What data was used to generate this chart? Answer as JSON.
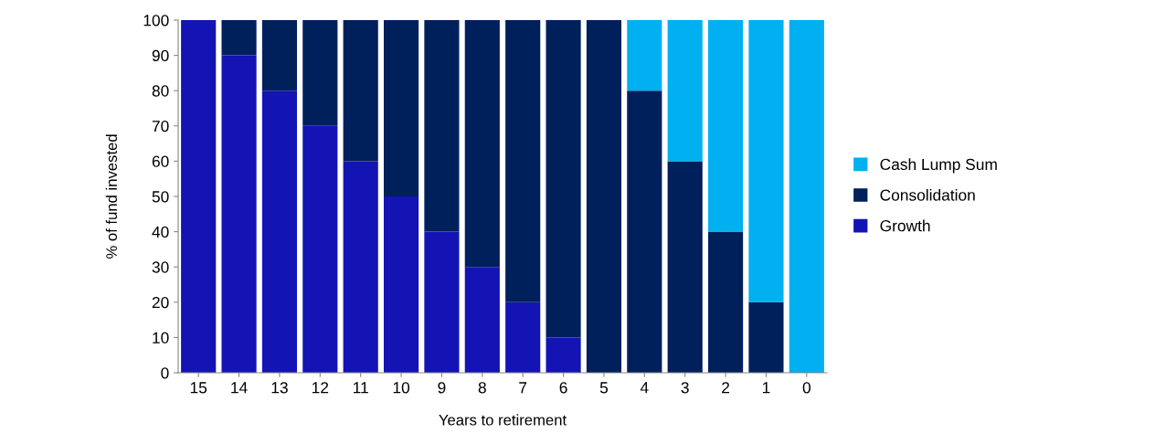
{
  "chart_data": {
    "type": "bar",
    "stacked": true,
    "xlabel": "Years to retirement",
    "ylabel": "% of fund invested",
    "categories": [
      "15",
      "14",
      "13",
      "12",
      "11",
      "10",
      "9",
      "8",
      "7",
      "6",
      "5",
      "4",
      "3",
      "2",
      "1",
      "0"
    ],
    "series": [
      {
        "name": "Growth",
        "color": "#1414b4",
        "values": [
          100,
          90,
          80,
          70,
          60,
          50,
          40,
          30,
          20,
          10,
          0,
          0,
          0,
          0,
          0,
          0
        ]
      },
      {
        "name": "Consolidation",
        "color": "#00205c",
        "values": [
          0,
          10,
          20,
          30,
          40,
          50,
          60,
          70,
          80,
          90,
          100,
          80,
          60,
          40,
          20,
          0
        ]
      },
      {
        "name": "Cash Lump Sum",
        "color": "#00b0f0",
        "values": [
          0,
          0,
          0,
          0,
          0,
          0,
          0,
          0,
          0,
          0,
          0,
          20,
          40,
          60,
          80,
          100
        ]
      }
    ],
    "ylim": [
      0,
      100
    ],
    "yticks": [
      0,
      10,
      20,
      30,
      40,
      50,
      60,
      70,
      80,
      90,
      100
    ],
    "grid": false,
    "legend": "right"
  }
}
